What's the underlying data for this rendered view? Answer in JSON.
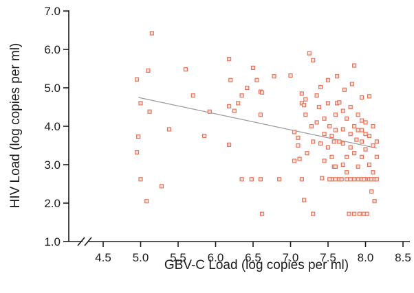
{
  "chart_data": {
    "type": "scatter",
    "title": "",
    "xlabel": "GBV-C Load (log copies per ml)",
    "ylabel": "HIV Load (log copies per ml)",
    "xlim": [
      4.0,
      8.5
    ],
    "ylim": [
      1.0,
      7.0
    ],
    "axis_break": "x-axis between 4.0 and 4.5",
    "x_ticks": [
      "4.5",
      "5.0",
      "5.5",
      "6.0",
      "6.5",
      "7.0",
      "7.5",
      "8.0",
      "8.5"
    ],
    "y_ticks": [
      "1.0",
      "2.0",
      "3.0",
      "4.0",
      "5.0",
      "6.0",
      "7.0"
    ],
    "grid": false,
    "colors": {
      "points": "#e8735a",
      "trend": "#9a9a9a",
      "axis": "#1a1a1a"
    },
    "trend_line": {
      "x": [
        4.97,
        8.15
      ],
      "y": [
        4.75,
        3.43
      ]
    },
    "series": [
      {
        "points": [
          [
            5.15,
            6.42
          ],
          [
            4.95,
            5.22
          ],
          [
            5.1,
            5.45
          ],
          [
            5.0,
            4.6
          ],
          [
            5.12,
            4.38
          ],
          [
            4.97,
            3.73
          ],
          [
            4.95,
            3.32
          ],
          [
            5.0,
            2.62
          ],
          [
            5.08,
            2.05
          ],
          [
            5.28,
            2.44
          ],
          [
            5.38,
            3.92
          ],
          [
            5.6,
            5.48
          ],
          [
            5.7,
            4.8
          ],
          [
            5.85,
            3.75
          ],
          [
            5.92,
            4.38
          ],
          [
            6.18,
            5.75
          ],
          [
            6.2,
            5.2
          ],
          [
            6.18,
            4.52
          ],
          [
            6.25,
            4.4
          ],
          [
            6.18,
            3.52
          ],
          [
            6.3,
            4.6
          ],
          [
            6.35,
            4.8
          ],
          [
            6.42,
            5.0
          ],
          [
            6.5,
            5.52
          ],
          [
            6.55,
            5.2
          ],
          [
            6.6,
            4.9
          ],
          [
            6.62,
            4.88
          ],
          [
            6.6,
            4.3
          ],
          [
            6.35,
            2.62
          ],
          [
            6.48,
            2.62
          ],
          [
            6.6,
            2.62
          ],
          [
            6.62,
            1.72
          ],
          [
            6.78,
            5.3
          ],
          [
            6.85,
            2.62
          ],
          [
            7.0,
            5.32
          ],
          [
            7.05,
            3.1
          ],
          [
            7.1,
            3.7
          ],
          [
            7.1,
            3.5
          ],
          [
            7.12,
            3.15
          ],
          [
            7.15,
            4.6
          ],
          [
            7.15,
            4.85
          ],
          [
            7.2,
            4.7
          ],
          [
            7.18,
            4.55
          ],
          [
            7.2,
            4.3
          ],
          [
            7.25,
            5.9
          ],
          [
            7.3,
            5.72
          ],
          [
            7.28,
            4.0
          ],
          [
            7.3,
            3.6
          ],
          [
            7.22,
            3.3
          ],
          [
            7.15,
            2.62
          ],
          [
            7.18,
            2.08
          ],
          [
            7.3,
            1.72
          ],
          [
            7.35,
            4.8
          ],
          [
            7.38,
            4.5
          ],
          [
            7.4,
            5.02
          ],
          [
            7.45,
            4.2
          ],
          [
            7.45,
            3.8
          ],
          [
            7.5,
            5.2
          ],
          [
            7.5,
            4.6
          ],
          [
            7.5,
            3.45
          ],
          [
            7.52,
            4.0
          ],
          [
            7.55,
            3.75
          ],
          [
            7.55,
            3.2
          ],
          [
            7.6,
            4.3
          ],
          [
            7.6,
            3.9
          ],
          [
            7.62,
            5.3
          ],
          [
            7.62,
            4.6
          ],
          [
            7.58,
            2.95
          ],
          [
            7.55,
            2.62
          ],
          [
            7.6,
            2.62
          ],
          [
            7.65,
            4.62
          ],
          [
            7.65,
            3.6
          ],
          [
            7.65,
            2.62
          ],
          [
            7.7,
            4.4
          ],
          [
            7.7,
            3.55
          ],
          [
            7.7,
            3.0
          ],
          [
            7.68,
            2.62
          ],
          [
            7.72,
            4.95
          ],
          [
            7.75,
            4.2
          ],
          [
            7.75,
            3.2
          ],
          [
            7.75,
            2.8
          ],
          [
            7.75,
            2.62
          ],
          [
            7.78,
            1.72
          ],
          [
            7.8,
            4.5
          ],
          [
            7.8,
            3.8
          ],
          [
            7.8,
            3.45
          ],
          [
            7.8,
            2.62
          ],
          [
            7.82,
            5.1
          ],
          [
            7.85,
            5.58
          ],
          [
            7.85,
            4.0
          ],
          [
            7.85,
            3.3
          ],
          [
            7.85,
            2.62
          ],
          [
            7.85,
            1.72
          ],
          [
            7.88,
            3.65
          ],
          [
            7.9,
            4.3
          ],
          [
            7.9,
            2.95
          ],
          [
            7.9,
            2.62
          ],
          [
            7.92,
            1.72
          ],
          [
            7.95,
            4.75
          ],
          [
            7.95,
            3.9
          ],
          [
            7.95,
            3.6
          ],
          [
            7.95,
            3.2
          ],
          [
            7.95,
            2.62
          ],
          [
            7.98,
            1.72
          ],
          [
            8.0,
            4.1
          ],
          [
            8.0,
            3.4
          ],
          [
            8.0,
            2.62
          ],
          [
            8.02,
            1.72
          ],
          [
            8.05,
            4.78
          ],
          [
            8.05,
            3.75
          ],
          [
            8.05,
            3.0
          ],
          [
            8.05,
            2.62
          ],
          [
            8.08,
            2.3
          ],
          [
            8.08,
            2.62
          ],
          [
            8.1,
            2.8
          ],
          [
            8.1,
            3.5
          ],
          [
            8.12,
            2.62
          ],
          [
            8.12,
            2.05
          ],
          [
            8.15,
            2.62
          ],
          [
            8.15,
            3.6
          ],
          [
            8.15,
            3.2
          ],
          [
            8.1,
            4.0
          ],
          [
            7.95,
            4.15
          ],
          [
            7.7,
            3.92
          ],
          [
            7.52,
            2.62
          ],
          [
            7.58,
            3.6
          ],
          [
            7.45,
            3.1
          ],
          [
            7.4,
            3.55
          ],
          [
            7.35,
            4.1
          ],
          [
            7.05,
            3.85
          ],
          [
            7.42,
            2.65
          ],
          [
            7.6,
            2.95
          ],
          [
            7.9,
            3.9
          ],
          [
            7.98,
            2.62
          ],
          [
            8.0,
            3.8
          ]
        ]
      }
    ]
  }
}
